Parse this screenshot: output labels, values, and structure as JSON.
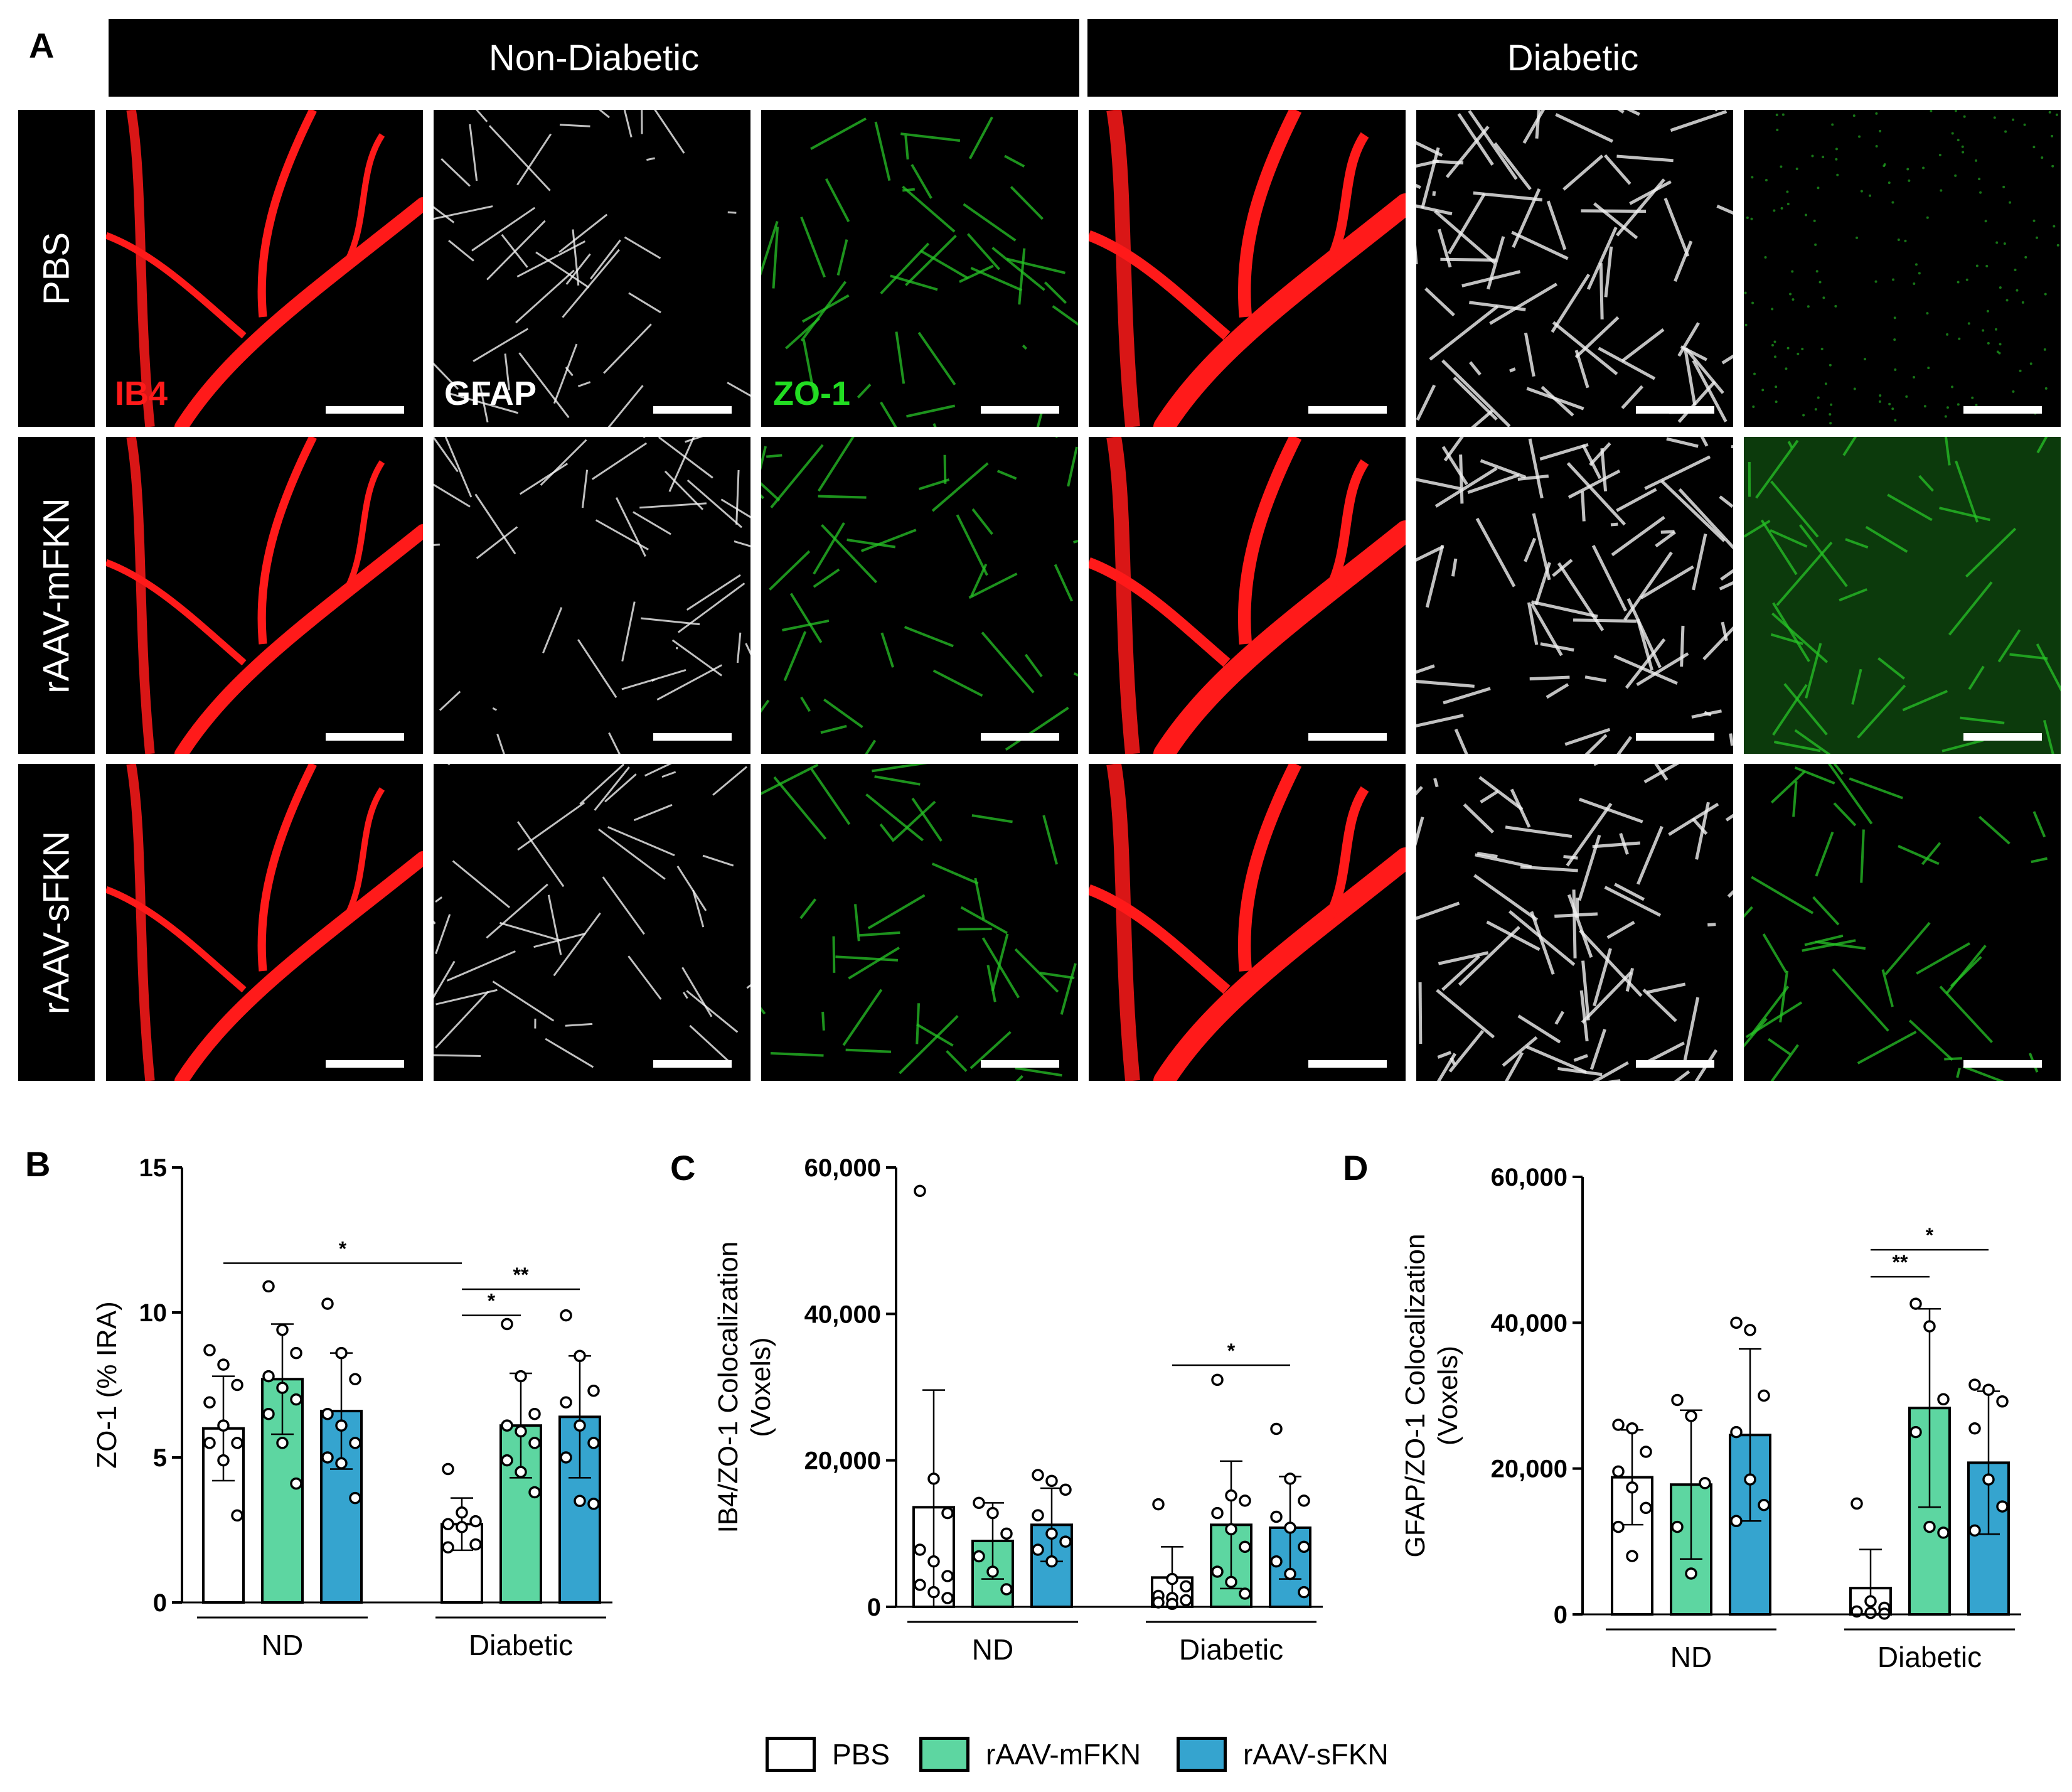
{
  "panelA": {
    "letter": "A",
    "headers": [
      "Non-Diabetic",
      "Diabetic"
    ],
    "rows": [
      "PBS",
      "rAAV-mFKN",
      "rAAV-sFKN"
    ],
    "stains": [
      {
        "label": "IB4",
        "color": "#ff1a1a"
      },
      {
        "label": "GFAP",
        "color": "#ffffff"
      },
      {
        "label": "ZO-1",
        "color": "#22dd22"
      }
    ]
  },
  "legend": [
    {
      "label": "PBS",
      "color": "#ffffff"
    },
    {
      "label": "rAAV-mFKN",
      "color": "#5dd6a1"
    },
    {
      "label": "rAAV-sFKN",
      "color": "#35a4cf"
    }
  ],
  "chart_data": [
    {
      "panel": "B",
      "type": "bar",
      "ylabel": "ZO-1 (% IRA)",
      "ylim": [
        0,
        15
      ],
      "yticks": [
        "0",
        "5",
        "10",
        "15"
      ],
      "ytick_values": [
        0,
        5,
        10,
        15
      ],
      "groups": [
        "ND",
        "Diabetic"
      ],
      "series": [
        {
          "name": "PBS",
          "values": [
            6.0,
            2.7
          ],
          "sd": [
            1.8,
            0.9
          ],
          "points": [
            [
              8.7,
              8.2,
              7.5,
              6.9,
              6.1,
              5.5,
              5.5,
              4.9,
              3.0
            ],
            [
              4.6,
              3.1,
              2.8,
              2.7,
              2.6,
              2.0,
              1.9
            ]
          ]
        },
        {
          "name": "rAAV-mFKN",
          "values": [
            7.7,
            6.1
          ],
          "sd": [
            1.9,
            1.8
          ],
          "points": [
            [
              10.9,
              9.4,
              8.6,
              7.8,
              7.4,
              7.0,
              6.5,
              5.5,
              4.1
            ],
            [
              9.6,
              7.8,
              6.5,
              6.1,
              5.9,
              5.5,
              4.9,
              4.5,
              3.8
            ]
          ]
        },
        {
          "name": "rAAV-sFKN",
          "values": [
            6.6,
            6.4
          ],
          "sd": [
            2.0,
            2.1
          ],
          "points": [
            [
              10.3,
              8.6,
              7.7,
              6.5,
              6.1,
              5.5,
              5.0,
              4.8,
              3.6
            ],
            [
              9.9,
              8.5,
              7.3,
              6.9,
              6.1,
              5.5,
              5.0,
              3.5,
              3.4
            ]
          ]
        }
      ],
      "significance": [
        {
          "label": "*",
          "from": [
            0,
            0
          ],
          "to": [
            1,
            0
          ],
          "y": 11.7
        },
        {
          "label": "**",
          "from": [
            1,
            0
          ],
          "to": [
            1,
            2
          ],
          "y": 10.8
        },
        {
          "label": "*",
          "from": [
            1,
            0
          ],
          "to": [
            1,
            1
          ],
          "y": 9.9
        }
      ]
    },
    {
      "panel": "C",
      "type": "bar",
      "ylabel": "IB4/ZO-1 Colocalization\n(Voxels)",
      "ylim": [
        0,
        60000
      ],
      "yticks": [
        "0",
        "20,000",
        "40,000",
        "60,000"
      ],
      "ytick_values": [
        0,
        20000,
        40000,
        60000
      ],
      "groups": [
        "ND",
        "Diabetic"
      ],
      "series": [
        {
          "name": "PBS",
          "values": [
            13600,
            4000
          ],
          "sd": [
            16000,
            4200
          ],
          "points": [
            [
              56800,
              17500,
              12800,
              7800,
              6200,
              4200,
              3000,
              2000,
              1200
            ],
            [
              14000,
              3800,
              2800,
              1500,
              1200,
              900,
              600,
              400
            ]
          ]
        },
        {
          "name": "rAAV-mFKN",
          "values": [
            9000,
            11200
          ],
          "sd": [
            5200,
            8700
          ],
          "points": [
            [
              14200,
              12800,
              10000,
              6900,
              4800,
              2400
            ],
            [
              31000,
              15200,
              14500,
              12800,
              10600,
              8200,
              4800,
              3400,
              1800
            ]
          ]
        },
        {
          "name": "rAAV-sFKN",
          "values": [
            11200,
            10800
          ],
          "sd": [
            5000,
            7000
          ],
          "points": [
            [
              18000,
              17200,
              16000,
              12500,
              10000,
              8900,
              7800,
              6200
            ],
            [
              24300,
              17500,
              14500,
              12300,
              10800,
              8200,
              6200,
              4500,
              2000
            ]
          ]
        }
      ],
      "significance": [
        {
          "label": "*",
          "from": [
            1,
            0
          ],
          "to": [
            1,
            2
          ],
          "y": 33000
        }
      ]
    },
    {
      "panel": "D",
      "type": "bar",
      "ylabel": "GFAP/ZO-1 Colocalization\n(Voxels)",
      "ylim": [
        0,
        60000
      ],
      "yticks": [
        "0",
        "20,000",
        "40,000",
        "60,000"
      ],
      "ytick_values": [
        0,
        20000,
        40000,
        60000
      ],
      "groups": [
        "ND",
        "Diabetic"
      ],
      "series": [
        {
          "name": "PBS",
          "values": [
            18800,
            3600
          ],
          "sd": [
            6500,
            5300
          ],
          "points": [
            [
              26000,
              25500,
              22300,
              19600,
              17400,
              14600,
              12000,
              8000
            ],
            [
              15200,
              1800,
              900,
              400,
              200,
              100
            ]
          ]
        },
        {
          "name": "rAAV-mFKN",
          "values": [
            17800,
            28300
          ],
          "sd": [
            10200,
            13600
          ],
          "points": [
            [
              29400,
              27200,
              18000,
              12000,
              5600
            ],
            [
              42600,
              39500,
              29500,
              25000,
              12000,
              11200
            ]
          ]
        },
        {
          "name": "rAAV-sFKN",
          "values": [
            24600,
            20800
          ],
          "sd": [
            11800,
            9800
          ],
          "points": [
            [
              40000,
              39000,
              30000,
              25000,
              18500,
              15000,
              12800
            ],
            [
              31500,
              30800,
              29200,
              25500,
              18500,
              14800,
              11500
            ]
          ]
        }
      ],
      "significance": [
        {
          "label": "*",
          "from": [
            1,
            0
          ],
          "to": [
            1,
            2
          ],
          "y": 50000
        },
        {
          "label": "**",
          "from": [
            1,
            0
          ],
          "to": [
            1,
            1
          ],
          "y": 46300
        }
      ]
    }
  ]
}
